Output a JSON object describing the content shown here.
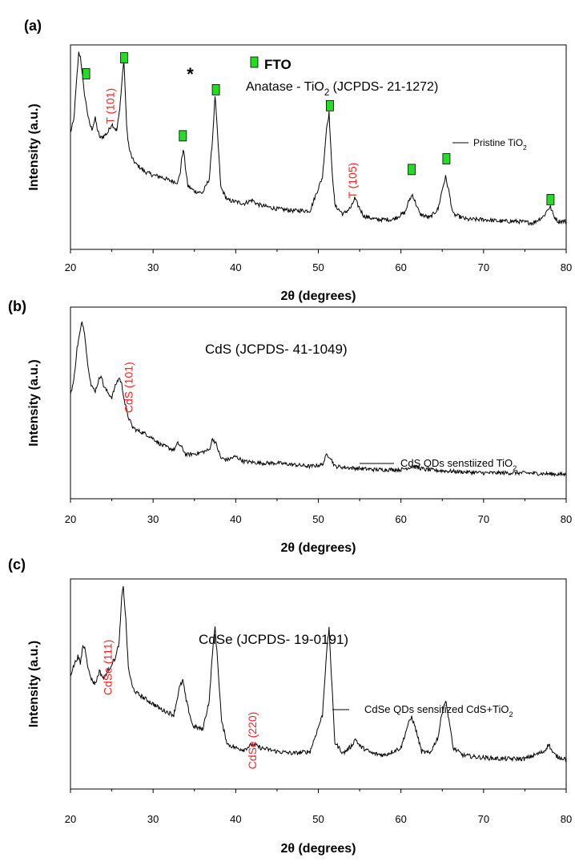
{
  "chart_data": [
    {
      "panel_label": "(a)",
      "type": "line",
      "xlabel": "2θ (degrees)",
      "ylabel": "Intensity (a.u.)",
      "xlim": [
        20,
        80
      ],
      "ylim": [
        0,
        100
      ],
      "xticks": [
        "20",
        "30",
        "40",
        "50",
        "60",
        "70",
        "80"
      ],
      "grid": false,
      "legend": {
        "position": "right",
        "entries": [
          "Pristine TiO2"
        ]
      },
      "header_lines": [
        "FTO",
        "Anatase - TiO2 (JCPDS- 21-1272)"
      ],
      "star_marker": {
        "text": "*",
        "x": 34.5
      },
      "series": [
        {
          "name": "Pristine TiO2",
          "color": "#000000",
          "x": [
            20.0,
            20.4,
            20.8,
            21.0,
            21.2,
            21.4,
            21.6,
            21.8,
            22.0,
            22.3,
            22.6,
            23.0,
            23.3,
            23.6,
            24.0,
            24.5,
            25.0,
            25.3,
            25.6,
            25.9,
            26.1,
            26.3,
            26.45,
            26.6,
            26.8,
            27.1,
            27.5,
            28.0,
            29.0,
            30.0,
            31.0,
            32.0,
            33.0,
            33.3,
            33.5,
            33.7,
            33.9,
            34.2,
            35.0,
            36.0,
            36.8,
            37.2,
            37.5,
            37.8,
            38.2,
            39.0,
            40.0,
            41.0,
            42.0,
            42.5,
            43.0,
            45.0,
            47.0,
            49.0,
            50.5,
            51.0,
            51.3,
            51.6,
            52.0,
            53.0,
            54.0,
            54.4,
            54.8,
            55.5,
            57.0,
            59.0,
            60.5,
            61.0,
            61.4,
            61.8,
            62.3,
            63.5,
            64.5,
            65.0,
            65.4,
            65.8,
            66.3,
            68.0,
            70.0,
            72.0,
            74.0,
            76.0,
            77.3,
            77.8,
            78.1,
            78.5,
            79.0,
            80.0
          ],
          "y": [
            55,
            62,
            88,
            100,
            98,
            90,
            80,
            74,
            68,
            60,
            57,
            63,
            56,
            52,
            53,
            55,
            60,
            58,
            56,
            66,
            76,
            88,
            96,
            82,
            58,
            46,
            40,
            37,
            33,
            31,
            30,
            28,
            27,
            33,
            42,
            45,
            36,
            25,
            22,
            21,
            29,
            52,
            76,
            54,
            24,
            17,
            16,
            15,
            17,
            15,
            14,
            12,
            11,
            11,
            30,
            58,
            66,
            38,
            14,
            9,
            13,
            18,
            14,
            8,
            6,
            6,
            10,
            17,
            20,
            15,
            9,
            7,
            12,
            23,
            30,
            22,
            9,
            6,
            6,
            5,
            5,
            4,
            8,
            12,
            13,
            8,
            5,
            5
          ],
          "noise": 1.2
        }
      ],
      "peak_labels": [
        {
          "text": "T (101)",
          "x": 25.3,
          "y": 70
        },
        {
          "text": "T (105)",
          "x": 54.6,
          "y": 28
        }
      ],
      "fto_markers": [
        {
          "x": 21.9,
          "y": 88
        },
        {
          "x": 26.5,
          "y": 97
        },
        {
          "x": 33.6,
          "y": 53
        },
        {
          "x": 37.6,
          "y": 79
        },
        {
          "x": 51.4,
          "y": 70
        },
        {
          "x": 61.3,
          "y": 34
        },
        {
          "x": 65.5,
          "y": 40
        },
        {
          "x": 78.1,
          "y": 17
        }
      ],
      "fto_marker_color": "#22dd22"
    },
    {
      "panel_label": "(b)",
      "type": "line",
      "xlabel": "2θ (degrees)",
      "ylabel": "Intensity (a.u.)",
      "xlim": [
        20,
        80
      ],
      "ylim": [
        0,
        100
      ],
      "xticks": [
        "20",
        "30",
        "40",
        "50",
        "60",
        "70",
        "80"
      ],
      "grid": false,
      "legend": {
        "position": "right",
        "entries": [
          "CdS QDs senstiized TiO2"
        ]
      },
      "header_lines": [
        "CdS  (JCPDS- 41-1049)"
      ],
      "series": [
        {
          "name": "CdS QDs senstiized TiO2",
          "color": "#000000",
          "x": [
            20.0,
            20.4,
            20.8,
            21.1,
            21.4,
            21.7,
            22.0,
            22.5,
            23.0,
            23.4,
            23.7,
            24.0,
            24.5,
            25.0,
            25.5,
            25.9,
            26.2,
            26.6,
            27.0,
            27.5,
            28.0,
            29.0,
            30.0,
            31.0,
            32.5,
            33.0,
            33.4,
            34.0,
            35.5,
            36.8,
            37.2,
            37.6,
            38.2,
            39.0,
            40.0,
            41.0,
            43.0,
            45.0,
            47.0,
            49.0,
            50.5,
            51.0,
            51.4,
            52.0,
            54.0,
            57.0,
            60.0,
            61.5,
            63.0,
            66.0,
            70.0,
            75.0,
            80.0
          ],
          "y": [
            52,
            60,
            80,
            88,
            96,
            90,
            74,
            57,
            54,
            60,
            64,
            57,
            53,
            50,
            58,
            62,
            58,
            46,
            38,
            32,
            30,
            28,
            25,
            21,
            18,
            22,
            20,
            15,
            16,
            18,
            25,
            22,
            13,
            12,
            14,
            11,
            10,
            10,
            9,
            8,
            9,
            15,
            14,
            8,
            7,
            6,
            6,
            8,
            6,
            5,
            4,
            4,
            3
          ],
          "noise": 1.2
        }
      ],
      "peak_labels": [
        {
          "text": "CdS (101)",
          "x": 27.5,
          "y": 56
        }
      ]
    },
    {
      "panel_label": "(c)",
      "type": "line",
      "xlabel": "2θ (degrees)",
      "ylabel": "Intensity (a.u.)",
      "xlim": [
        20,
        80
      ],
      "ylim": [
        0,
        100
      ],
      "xticks": [
        "20",
        "30",
        "40",
        "50",
        "60",
        "70",
        "80"
      ],
      "grid": false,
      "legend": {
        "position": "right",
        "entries": [
          "CdSe QDs sensitized CdS+TiO2"
        ]
      },
      "header_lines": [
        "CdSe  (JCPDS- 19-0191)"
      ],
      "series": [
        {
          "name": "CdSe QDs sensitized CdS+TiO2",
          "color": "#000000",
          "x": [
            20.0,
            20.5,
            20.9,
            21.2,
            21.5,
            21.8,
            22.2,
            22.6,
            23.0,
            23.5,
            24.0,
            24.5,
            25.0,
            25.5,
            25.9,
            26.2,
            26.4,
            26.7,
            27.0,
            27.5,
            28.0,
            29.0,
            30.0,
            31.0,
            32.5,
            33.2,
            33.6,
            34.0,
            34.8,
            36.0,
            36.8,
            37.2,
            37.5,
            37.8,
            38.3,
            39.0,
            40.0,
            41.0,
            42.0,
            43.0,
            45.0,
            47.0,
            49.0,
            50.5,
            51.0,
            51.3,
            51.6,
            52.0,
            53.0,
            54.0,
            54.5,
            55.0,
            56.5,
            58.0,
            60.0,
            60.8,
            61.3,
            61.8,
            62.5,
            63.5,
            64.5,
            65.0,
            65.4,
            65.8,
            66.3,
            67.5,
            69.0,
            72.0,
            75.0,
            77.3,
            77.9,
            78.4,
            79.0,
            80.0
          ],
          "y": [
            52,
            58,
            62,
            58,
            68,
            66,
            54,
            49,
            47,
            54,
            50,
            54,
            58,
            62,
            70,
            94,
            100,
            82,
            56,
            45,
            42,
            39,
            36,
            33,
            30,
            45,
            49,
            38,
            24,
            22,
            38,
            65,
            78,
            60,
            26,
            14,
            12,
            11,
            14,
            12,
            10,
            9,
            10,
            30,
            65,
            77,
            50,
            15,
            9,
            13,
            17,
            13,
            9,
            8,
            12,
            24,
            29,
            22,
            10,
            9,
            18,
            32,
            38,
            28,
            12,
            8,
            7,
            6,
            6,
            10,
            14,
            9,
            7,
            6
          ],
          "noise": 1.2
        }
      ],
      "peak_labels": [
        {
          "text": "CdSe (111)",
          "x": 25.0,
          "y": 56
        },
        {
          "text": "CdSe (220)",
          "x": 42.5,
          "y": 16
        }
      ]
    }
  ]
}
